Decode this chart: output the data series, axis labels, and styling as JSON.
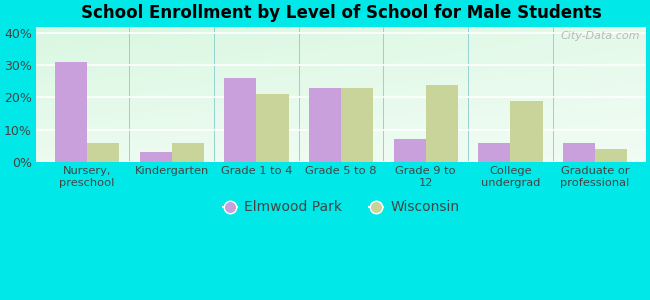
{
  "title": "School Enrollment by Level of School for Male Students",
  "categories": [
    "Nursery,\npreschool",
    "Kindergarten",
    "Grade 1 to 4",
    "Grade 5 to 8",
    "Grade 9 to\n12",
    "College\nundergrad",
    "Graduate or\nprofessional"
  ],
  "elmwood_park": [
    31,
    3,
    26,
    23,
    7,
    6,
    6
  ],
  "wisconsin": [
    6,
    6,
    21,
    23,
    24,
    19,
    4
  ],
  "elmwood_color": "#c9a0dc",
  "wisconsin_color": "#c8d49a",
  "bg_color": "#00e8e8",
  "ylabel_ticks": [
    "0%",
    "10%",
    "20%",
    "30%",
    "40%"
  ],
  "ytick_vals": [
    0,
    10,
    20,
    30,
    40
  ],
  "ylim": [
    0,
    42
  ],
  "bar_width": 0.38,
  "legend_labels": [
    "Elmwood Park",
    "Wisconsin"
  ],
  "watermark": "City-Data.com"
}
